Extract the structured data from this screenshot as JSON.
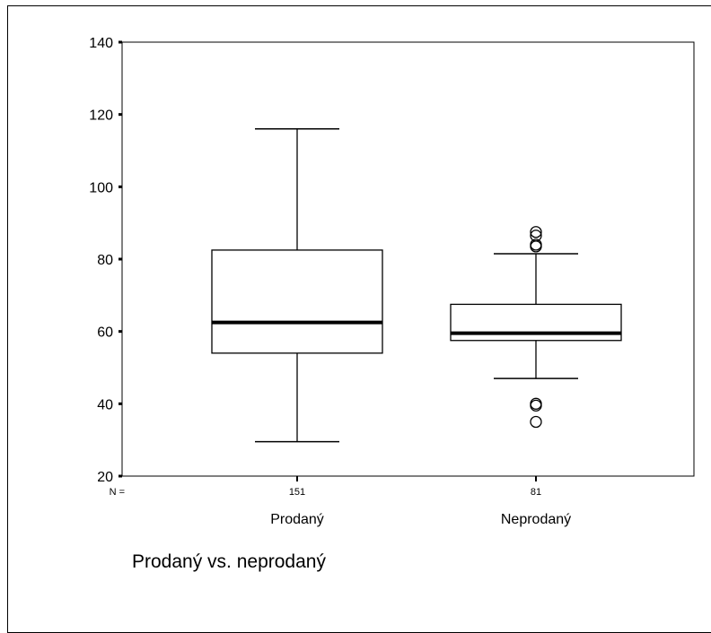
{
  "caption": "Prodaný vs. neprodaný",
  "chart_data": {
    "type": "boxplot",
    "title": "",
    "xlabel": "",
    "ylabel": "",
    "ylim": [
      20,
      140
    ],
    "yticks": [
      20,
      40,
      60,
      80,
      100,
      120,
      140
    ],
    "n_label": "N =",
    "grid": false,
    "groups": [
      {
        "category": "Prodaný",
        "n": 151,
        "whisker_low": 29.5,
        "q1": 54,
        "median": 62.5,
        "q3": 82.5,
        "whisker_high": 116,
        "outliers": []
      },
      {
        "category": "Neprodaný",
        "n": 81,
        "whisker_low": 47,
        "q1": 57.5,
        "median": 59.5,
        "q3": 67.5,
        "whisker_high": 81.5,
        "outliers": [
          87.5,
          86.5,
          84,
          83.5,
          40,
          39.5,
          35
        ]
      }
    ]
  }
}
